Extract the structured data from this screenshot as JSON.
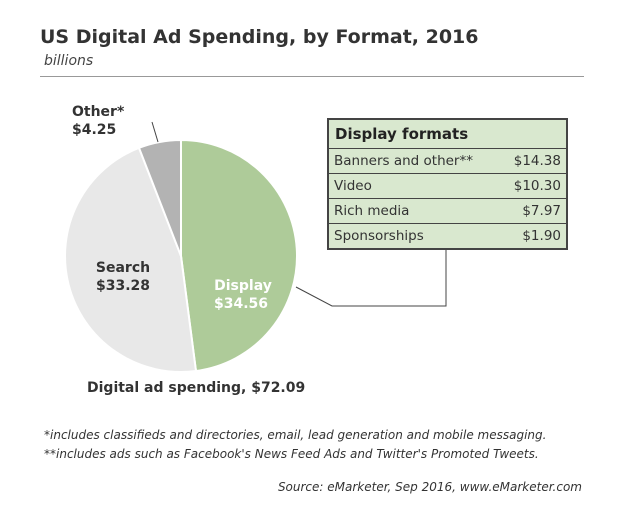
{
  "header": {
    "title": "US Digital Ad Spending, by Format, 2016",
    "subtitle": "billions"
  },
  "chart_data": {
    "type": "pie",
    "total_label": "Digital ad spending, $72.09",
    "slices": [
      {
        "name": "Display",
        "value": 34.56,
        "value_label": "$34.56",
        "color": "#aecb99"
      },
      {
        "name": "Search",
        "value": 33.28,
        "value_label": "$33.28",
        "color": "#e8e8e8"
      },
      {
        "name": "Other*",
        "value": 4.25,
        "value_label": "$4.25",
        "color": "#b3b3b3"
      }
    ]
  },
  "display_formats": {
    "title": "Display formats",
    "rows": [
      {
        "label": "Banners and other**",
        "value": "$14.38"
      },
      {
        "label": "Video",
        "value": "$10.30"
      },
      {
        "label": "Rich media",
        "value": "$7.97"
      },
      {
        "label": "Sponsorships",
        "value": "$1.90"
      }
    ]
  },
  "footnotes": {
    "note1": "*includes classifieds and directories, email, lead generation and mobile messaging.",
    "note2": "**includes ads such as Facebook's News Feed Ads and Twitter's Promoted Tweets.",
    "source": "Source: eMarketer, Sep 2016, www.eMarketer.com"
  }
}
